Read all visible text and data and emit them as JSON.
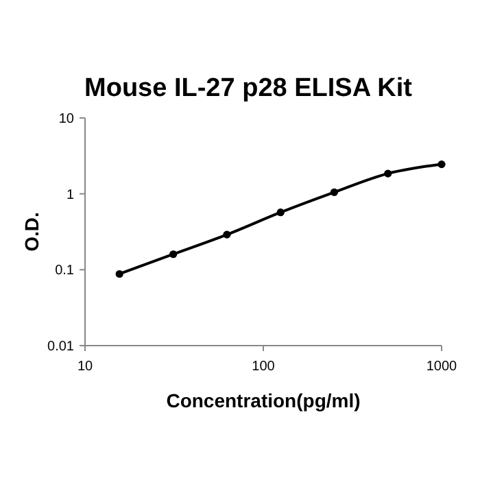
{
  "chart_data": {
    "type": "line",
    "title": "Mouse IL-27 p28 ELISA Kit",
    "xlabel": "Concentration(pg/ml)",
    "ylabel": "O.D.",
    "x": [
      15.6,
      31.25,
      62.5,
      125,
      250,
      500,
      1000
    ],
    "series": [
      {
        "color": "#000000",
        "values": [
          0.088,
          0.16,
          0.29,
          0.57,
          1.05,
          1.85,
          2.45
        ]
      }
    ],
    "xlim": [
      10,
      1000
    ],
    "ylim": [
      0.01,
      10
    ],
    "xticks": [
      10,
      100,
      1000
    ],
    "yticks": [
      0.01,
      0.1,
      1,
      10
    ],
    "log": "xy",
    "grid": false,
    "marker": "circle",
    "line_style": "solid"
  }
}
